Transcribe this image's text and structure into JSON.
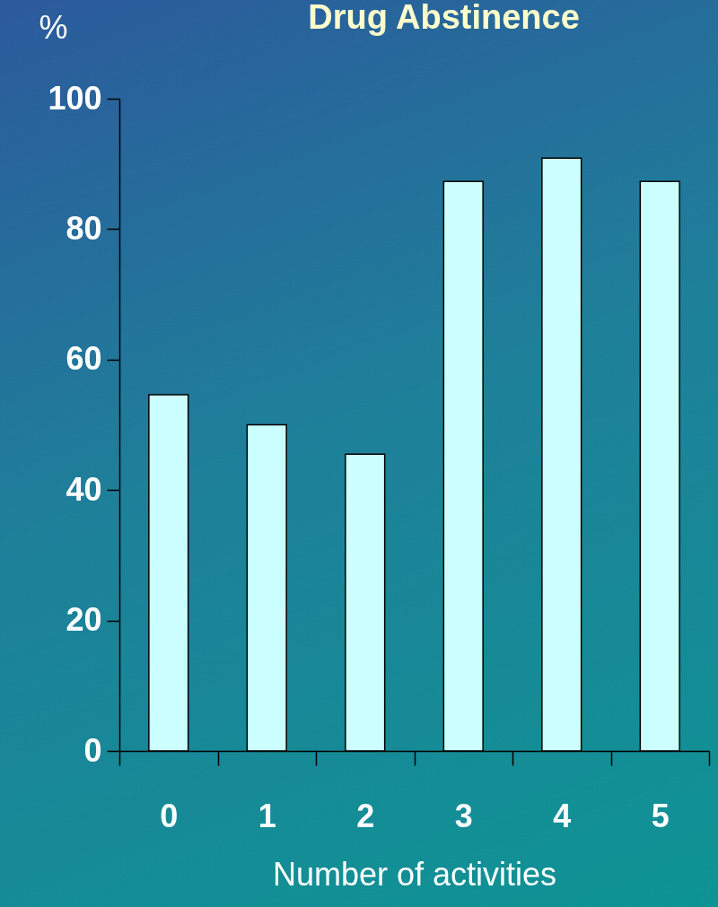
{
  "chart_data": {
    "type": "bar",
    "title": "Drug Abstinence",
    "xlabel": "Number of activities",
    "ylabel": "%",
    "categories": [
      "0",
      "1",
      "2",
      "3",
      "4",
      "5"
    ],
    "values": [
      54.6,
      50,
      45.5,
      87.3,
      90.9,
      87.3
    ],
    "color": "#ccffff",
    "ylim": [
      0,
      100
    ],
    "yticks": [
      0,
      20,
      40,
      60,
      80,
      100
    ],
    "grid": false
  }
}
